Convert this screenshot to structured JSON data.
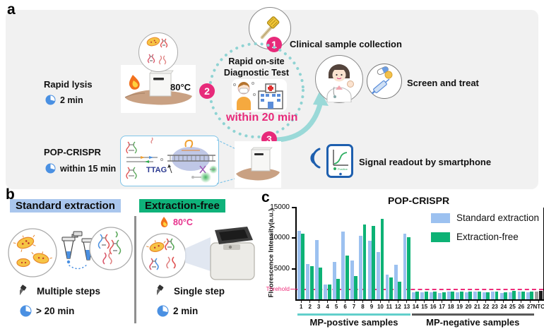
{
  "panel_a": {
    "label": "a",
    "clinical": {
      "num": "1",
      "label": "Clinical sample collection"
    },
    "step2_num": "2",
    "step3_num": "3",
    "rapid_lysis": {
      "title": "Rapid lysis",
      "time": "2 min",
      "temp": "80°C"
    },
    "onsite": {
      "line1": "Rapid on-site",
      "line2": "Diagnostic Test",
      "within": "within  20 min"
    },
    "screen_treat": "Screen and treat",
    "pop_crispr": {
      "title": "POP-CRISPR",
      "time": "within 15 min",
      "ttag": "TTAG"
    },
    "signal": "Signal readout by smartphone",
    "phone_label": "Positive"
  },
  "panel_b": {
    "label": "b",
    "standard": {
      "title": "Standard extraction",
      "title_bg": "#a9c6ed",
      "steps": "Multiple steps",
      "time": "> 20 min"
    },
    "extraction_free": {
      "title": "Extraction-free",
      "title_bg": "#0fb27a",
      "temp": "80°C",
      "steps": "Single step",
      "time": "2 min"
    }
  },
  "panel_c": {
    "label": "c"
  },
  "chart_data": {
    "type": "bar",
    "title": "POP-CRISPR",
    "ylabel": "Fluorescence Intensity(a.u.)",
    "ylim": [
      0,
      15000
    ],
    "yticks": [
      5000,
      10000,
      15000
    ],
    "threshold": {
      "label": "Threhold",
      "value": 1600,
      "color": "#ee2d7a"
    },
    "categories": [
      "1",
      "2",
      "3",
      "4",
      "5",
      "6",
      "7",
      "8",
      "9",
      "10",
      "11",
      "12",
      "13",
      "14",
      "15",
      "16",
      "17",
      "18",
      "19",
      "20",
      "21",
      "22",
      "23",
      "24",
      "25",
      "26",
      "27",
      "NTC"
    ],
    "series": [
      {
        "name": "Standard extraction",
        "color": "#9cc1f0",
        "values": [
          11200,
          5800,
          9700,
          2400,
          6150,
          11050,
          6400,
          10400,
          9600,
          7700,
          4000,
          5700,
          10700,
          1150,
          1200,
          1100,
          1000,
          1250,
          1150,
          1200,
          1300,
          1150,
          1250,
          1050,
          1200,
          1250,
          1200,
          1300
        ]
      },
      {
        "name": "Extraction-free",
        "color": "#0db275",
        "values": [
          10700,
          5450,
          5250,
          2450,
          3400,
          7100,
          3800,
          12250,
          12000,
          13100,
          3600,
          2850,
          10150,
          1250,
          1300,
          1250,
          1200,
          1300,
          1250,
          1300,
          1250,
          1200,
          1300,
          1200,
          1350,
          1300,
          1250,
          1400
        ]
      }
    ],
    "ntc_colors": [
      "#9c9c9c",
      "#1c1c1c"
    ],
    "group_labels": [
      {
        "label": "MP-postive samples",
        "from": 0,
        "to": 12,
        "color": "#62cfcb"
      },
      {
        "label": "MP-negative samples",
        "from": 13,
        "to": 26,
        "color": "#595959"
      }
    ],
    "legend_position": "top-right",
    "grid": false
  }
}
